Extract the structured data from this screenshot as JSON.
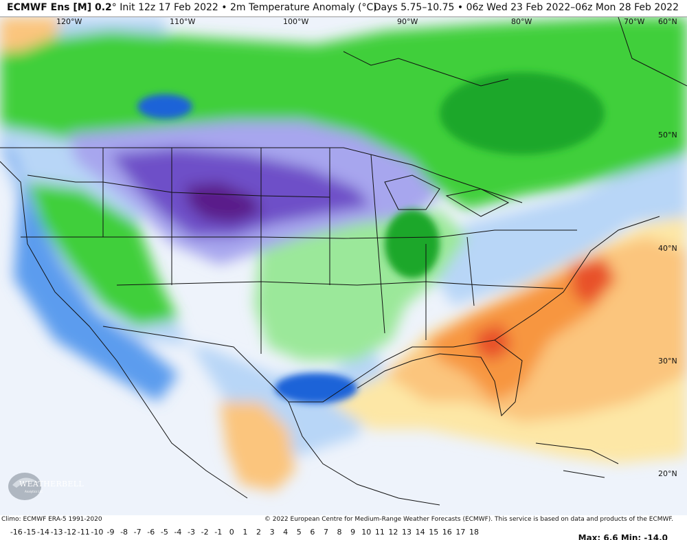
{
  "header": {
    "model": "ECMWF Ens [M] 0.2",
    "degree": "°",
    "init": "Init 12z 17 Feb 2022",
    "bullet": "•",
    "field": "2m Temperature Anomaly (°C)",
    "valid": "Days 5.75–10.75 • 06z Wed 23 Feb 2022–06z Mon 28 Feb 2022"
  },
  "map": {
    "longitudes": [
      "120°W",
      "110°W",
      "100°W",
      "90°W",
      "80°W",
      "70°W",
      "60°N"
    ],
    "latitudes": [
      "50°N",
      "40°N",
      "30°N",
      "20°N"
    ],
    "palette": {
      "very_cold": "#5a1e8a",
      "cold": "#6e4fc8",
      "cool": "#a7a6ee",
      "slightly_cool": "#dcdcf8",
      "green_dark": "#1fa72a",
      "green": "#3fcf3a",
      "green_light": "#9be89a",
      "blue_dark": "#1f63d8",
      "blue": "#5b9cee",
      "blue_light": "#b8d6f7",
      "neutral": "#eef3fb",
      "yellow": "#fde7a6",
      "orange_light": "#fbc57d",
      "orange": "#f7963f",
      "red": "#e8512a"
    }
  },
  "logo": {
    "name": "WEATHERBELL",
    "sub": "Analytics LLC"
  },
  "footer": {
    "climo": "Climo: ECMWF ERA-5 1991-2020",
    "copyright": "© 2022 European Centre for Medium-Range Weather Forecasts (ECMWF). This service is based on data and products of the ECMWF.",
    "colorbar_ticks": [
      "-16",
      "-15",
      "-14",
      "-13",
      "-12",
      "-11",
      "-10",
      "-9",
      "-8",
      "-7",
      "-6",
      "-5",
      "-4",
      "-3",
      "-2",
      "-1",
      "0",
      "1",
      "2",
      "3",
      "4",
      "5",
      "6",
      "7",
      "8",
      "9",
      "10",
      "11",
      "12",
      "13",
      "14",
      "15",
      "16",
      "17",
      "18"
    ],
    "maxmin": "Max: 6.6 Min: -14.0"
  }
}
